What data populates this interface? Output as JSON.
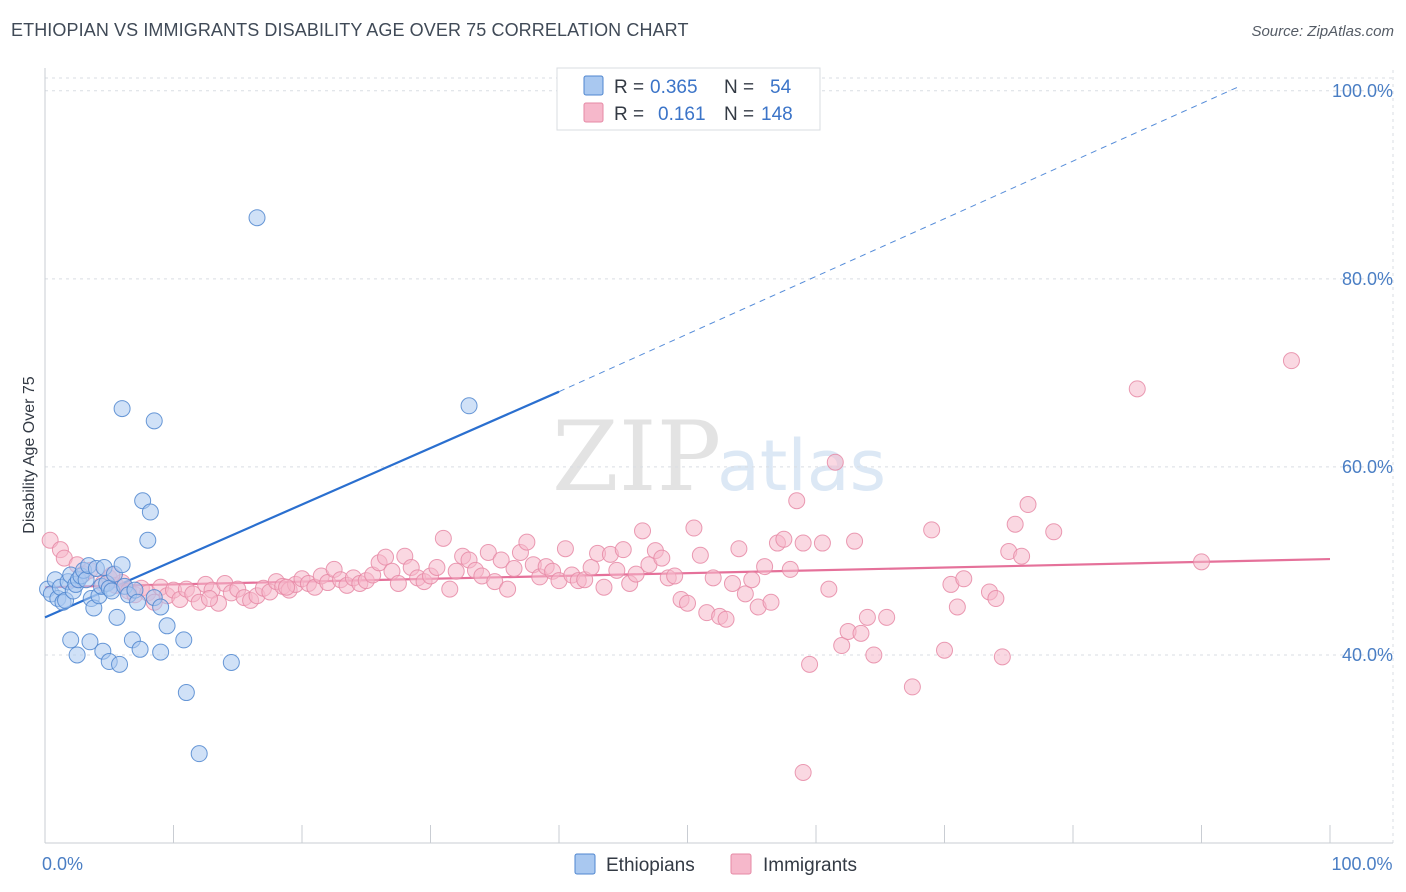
{
  "header": {
    "title": "ETHIOPIAN VS IMMIGRANTS DISABILITY AGE OVER 75 CORRELATION CHART",
    "source": "Source: ZipAtlas.com"
  },
  "watermark": {
    "zip": "ZIP",
    "atlas": "atlas"
  },
  "colors": {
    "ethiopians_fill": "#a9c8f0",
    "ethiopians_stroke": "#4f86cf",
    "ethiopians_line": "#2a6fcf",
    "immigrants_fill": "#f6b8cb",
    "immigrants_stroke": "#e68aa6",
    "immigrants_line": "#e5719a",
    "axis_tick_text": "#4a7ec4",
    "grid": "#d9dde3"
  },
  "legend": {
    "rows": [
      {
        "r_label": "R =",
        "r_value": "0.365",
        "n_label": "N =",
        "n_value": "54"
      },
      {
        "r_label": "R =",
        "r_value": "0.161",
        "n_label": "N =",
        "n_value": "148"
      }
    ]
  },
  "chart_data": {
    "type": "scatter",
    "title": "ETHIOPIAN VS IMMIGRANTS DISABILITY AGE OVER 75 CORRELATION CHART",
    "xlabel": "",
    "ylabel": "Disability Age Over 75",
    "xlim": [
      0,
      100
    ],
    "ylim": [
      20,
      102
    ],
    "y_ticks": [
      {
        "value": 40,
        "label": "40.0%"
      },
      {
        "value": 60,
        "label": "60.0%"
      },
      {
        "value": 80,
        "label": "80.0%"
      },
      {
        "value": 100,
        "label": "100.0%"
      }
    ],
    "x_tick_labels": [
      {
        "value": 0,
        "label": "0.0%"
      },
      {
        "value": 100,
        "label": "100.0%"
      }
    ],
    "x_minor_ticks": [
      10,
      20,
      30,
      40,
      50,
      60,
      70,
      80,
      90,
      100
    ],
    "legend_position": "top-center",
    "series": [
      {
        "name": "Ethiopians",
        "r": 0.365,
        "n": 54,
        "trend": {
          "x0": 0,
          "y0": 44.0,
          "x1": 40,
          "y1": 68.0,
          "dashed_to_x": 93,
          "dashed_to_y": 100.5
        },
        "points": [
          [
            0.2,
            47.0
          ],
          [
            0.5,
            46.5
          ],
          [
            0.8,
            48.0
          ],
          [
            1.0,
            46.0
          ],
          [
            1.2,
            47.2
          ],
          [
            1.4,
            45.6
          ],
          [
            1.6,
            45.8
          ],
          [
            1.8,
            47.8
          ],
          [
            2.0,
            48.5
          ],
          [
            2.2,
            46.8
          ],
          [
            2.4,
            47.5
          ],
          [
            2.6,
            48.0
          ],
          [
            2.8,
            48.4
          ],
          [
            3.0,
            49.0
          ],
          [
            3.2,
            48.0
          ],
          [
            3.4,
            49.5
          ],
          [
            3.6,
            46.0
          ],
          [
            3.8,
            45.0
          ],
          [
            4.0,
            49.2
          ],
          [
            4.2,
            46.3
          ],
          [
            4.4,
            47.3
          ],
          [
            4.6,
            49.3
          ],
          [
            4.8,
            47.6
          ],
          [
            5.0,
            47.1
          ],
          [
            5.2,
            46.8
          ],
          [
            5.4,
            48.6
          ],
          [
            5.6,
            44.0
          ],
          [
            6.0,
            49.6
          ],
          [
            6.2,
            47.3
          ],
          [
            6.5,
            46.4
          ],
          [
            7.0,
            46.9
          ],
          [
            7.2,
            45.6
          ],
          [
            7.6,
            56.4
          ],
          [
            8.0,
            52.2
          ],
          [
            8.2,
            55.2
          ],
          [
            8.5,
            46.1
          ],
          [
            9.0,
            45.1
          ],
          [
            9.5,
            43.1
          ],
          [
            2.0,
            41.6
          ],
          [
            2.5,
            40.0
          ],
          [
            3.5,
            41.4
          ],
          [
            4.5,
            40.4
          ],
          [
            5.0,
            39.3
          ],
          [
            5.8,
            39.0
          ],
          [
            6.8,
            41.6
          ],
          [
            7.4,
            40.6
          ],
          [
            9.0,
            40.3
          ],
          [
            10.8,
            41.6
          ],
          [
            6.0,
            66.2
          ],
          [
            8.5,
            64.9
          ],
          [
            16.5,
            86.5
          ],
          [
            33.0,
            66.5
          ],
          [
            14.5,
            39.2
          ],
          [
            11.0,
            36.0
          ],
          [
            12.0,
            29.5
          ]
        ]
      },
      {
        "name": "Immigrants",
        "r": 0.161,
        "n": 148,
        "trend": {
          "x0": 0,
          "y0": 47.2,
          "x1": 100,
          "y1": 50.2
        },
        "points": [
          [
            0.4,
            52.2
          ],
          [
            1.2,
            51.2
          ],
          [
            1.5,
            50.3
          ],
          [
            2.5,
            49.6
          ],
          [
            3.0,
            48.6
          ],
          [
            3.5,
            49.0
          ],
          [
            4.5,
            47.6
          ],
          [
            5.0,
            48.2
          ],
          [
            5.5,
            47.4
          ],
          [
            6.0,
            47.7
          ],
          [
            6.5,
            46.8
          ],
          [
            7.0,
            46.4
          ],
          [
            7.5,
            47.1
          ],
          [
            8.0,
            46.6
          ],
          [
            8.5,
            45.6
          ],
          [
            9.0,
            47.2
          ],
          [
            9.5,
            46.3
          ],
          [
            10.0,
            46.9
          ],
          [
            10.5,
            45.9
          ],
          [
            11.0,
            47.0
          ],
          [
            11.5,
            46.5
          ],
          [
            12.0,
            45.6
          ],
          [
            12.5,
            47.5
          ],
          [
            13.0,
            46.9
          ],
          [
            13.5,
            45.5
          ],
          [
            14.0,
            47.6
          ],
          [
            14.5,
            46.6
          ],
          [
            15.0,
            47.0
          ],
          [
            15.5,
            46.1
          ],
          [
            16.0,
            45.8
          ],
          [
            16.5,
            46.3
          ],
          [
            17.0,
            47.1
          ],
          [
            17.5,
            46.7
          ],
          [
            18.0,
            47.8
          ],
          [
            18.5,
            47.3
          ],
          [
            19.0,
            46.9
          ],
          [
            19.5,
            47.5
          ],
          [
            20.0,
            48.1
          ],
          [
            20.5,
            47.6
          ],
          [
            21.0,
            47.2
          ],
          [
            21.5,
            48.4
          ],
          [
            22.0,
            47.7
          ],
          [
            22.5,
            49.1
          ],
          [
            23.0,
            48.0
          ],
          [
            23.5,
            47.4
          ],
          [
            24.0,
            48.2
          ],
          [
            24.5,
            47.6
          ],
          [
            25.0,
            47.9
          ],
          [
            25.5,
            48.5
          ],
          [
            26.0,
            49.8
          ],
          [
            26.5,
            50.4
          ],
          [
            27.0,
            48.9
          ],
          [
            27.5,
            47.6
          ],
          [
            28.0,
            50.5
          ],
          [
            28.5,
            49.3
          ],
          [
            29.0,
            48.2
          ],
          [
            29.5,
            47.8
          ],
          [
            30.0,
            48.4
          ],
          [
            30.5,
            49.3
          ],
          [
            31.0,
            52.4
          ],
          [
            31.5,
            47.0
          ],
          [
            32.0,
            48.9
          ],
          [
            32.5,
            50.5
          ],
          [
            33.0,
            50.1
          ],
          [
            33.5,
            49.0
          ],
          [
            34.0,
            48.4
          ],
          [
            34.5,
            50.9
          ],
          [
            35.0,
            47.8
          ],
          [
            35.5,
            50.1
          ],
          [
            36.0,
            47.0
          ],
          [
            36.5,
            49.2
          ],
          [
            37.0,
            50.9
          ],
          [
            37.5,
            52.0
          ],
          [
            38.0,
            49.6
          ],
          [
            38.5,
            48.3
          ],
          [
            39.0,
            49.4
          ],
          [
            39.5,
            48.9
          ],
          [
            40.0,
            47.9
          ],
          [
            40.5,
            51.3
          ],
          [
            41.0,
            48.5
          ],
          [
            41.5,
            47.9
          ],
          [
            42.0,
            48.0
          ],
          [
            42.5,
            49.3
          ],
          [
            43.0,
            50.8
          ],
          [
            43.5,
            47.2
          ],
          [
            44.0,
            50.7
          ],
          [
            44.5,
            49.0
          ],
          [
            45.0,
            51.2
          ],
          [
            45.5,
            47.6
          ],
          [
            46.0,
            48.6
          ],
          [
            46.5,
            53.2
          ],
          [
            47.0,
            49.6
          ],
          [
            47.5,
            51.1
          ],
          [
            48.0,
            50.3
          ],
          [
            48.5,
            48.2
          ],
          [
            49.0,
            48.4
          ],
          [
            49.5,
            45.9
          ],
          [
            50.0,
            45.5
          ],
          [
            50.5,
            53.5
          ],
          [
            51.0,
            50.6
          ],
          [
            51.5,
            44.5
          ],
          [
            52.0,
            48.2
          ],
          [
            52.5,
            44.1
          ],
          [
            53.0,
            43.8
          ],
          [
            53.5,
            47.6
          ],
          [
            54.0,
            51.3
          ],
          [
            54.5,
            46.5
          ],
          [
            55.0,
            48.0
          ],
          [
            55.5,
            45.1
          ],
          [
            56.0,
            49.4
          ],
          [
            56.5,
            45.6
          ],
          [
            57.0,
            51.9
          ],
          [
            57.5,
            52.3
          ],
          [
            58.0,
            49.1
          ],
          [
            58.5,
            56.4
          ],
          [
            59.0,
            51.9
          ],
          [
            59.5,
            39.0
          ],
          [
            60.5,
            51.9
          ],
          [
            61.0,
            47.0
          ],
          [
            61.5,
            60.5
          ],
          [
            62.0,
            41.0
          ],
          [
            62.5,
            42.5
          ],
          [
            63.0,
            52.1
          ],
          [
            63.5,
            42.3
          ],
          [
            64.0,
            44.0
          ],
          [
            64.5,
            40.0
          ],
          [
            65.5,
            44.0
          ],
          [
            67.5,
            36.6
          ],
          [
            69.0,
            53.3
          ],
          [
            70.0,
            40.5
          ],
          [
            70.5,
            47.5
          ],
          [
            71.0,
            45.1
          ],
          [
            71.5,
            48.1
          ],
          [
            73.5,
            46.7
          ],
          [
            74.0,
            46.0
          ],
          [
            74.5,
            39.8
          ],
          [
            75.0,
            51.0
          ],
          [
            75.5,
            53.9
          ],
          [
            76.0,
            50.5
          ],
          [
            76.5,
            56.0
          ],
          [
            78.5,
            53.1
          ],
          [
            59.0,
            27.5
          ],
          [
            85.0,
            68.3
          ],
          [
            90.0,
            49.9
          ],
          [
            97.0,
            71.3
          ],
          [
            5.2,
            48.5
          ],
          [
            12.8,
            46.0
          ],
          [
            18.8,
            47.2
          ]
        ]
      }
    ]
  },
  "bottom_legend": {
    "items": [
      {
        "label": "Ethiopians"
      },
      {
        "label": "Immigrants"
      }
    ]
  }
}
